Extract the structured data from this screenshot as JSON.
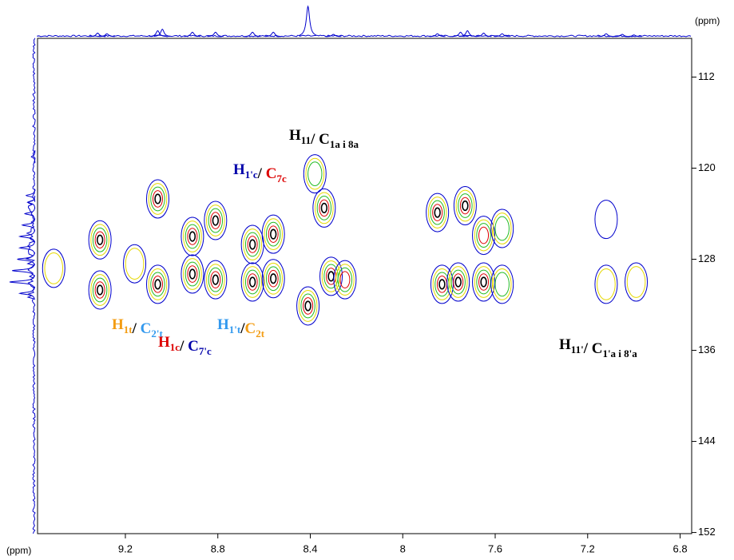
{
  "chart_data": {
    "type": "contour",
    "x_unit": "(ppm)",
    "y_unit": "(ppm)",
    "xlim": [
      9.58,
      6.75
    ],
    "xticks": [
      9.2,
      8.8,
      8.4,
      8.0,
      7.6,
      7.2,
      6.8
    ],
    "ylim": [
      108.6,
      152.1
    ],
    "yticks": [
      112,
      120,
      128,
      136,
      144,
      152
    ],
    "contour_colors": [
      "#0000cc",
      "#e6d800",
      "#22bb22",
      "#dd0000",
      "#000000"
    ],
    "projection_color": "#0000cc",
    "peaks": {
      "x": [
        9.51,
        9.31,
        9.31,
        9.06,
        9.06,
        8.91,
        8.91,
        8.81,
        8.81,
        8.65,
        8.65,
        8.56,
        8.56,
        8.34,
        8.31,
        8.41,
        8.25,
        8.38,
        7.85,
        7.83,
        7.73,
        7.76,
        7.65,
        7.65,
        7.57,
        7.57,
        7.12,
        7.12,
        6.99,
        9.16
      ],
      "y": [
        128.8,
        126.3,
        130.7,
        122.7,
        130.2,
        126,
        129.3,
        124.6,
        129.8,
        126.7,
        130,
        125.8,
        129.7,
        123.5,
        129.5,
        132.1,
        129.8,
        120.5,
        123.9,
        130.2,
        123.3,
        130,
        130,
        125.9,
        130.2,
        125.3,
        130.2,
        124.5,
        130,
        128.4
      ],
      "intensity": [
        2,
        5,
        5,
        5,
        5,
        5,
        5,
        5,
        5,
        5,
        5,
        5,
        5,
        5,
        5,
        5,
        4,
        3,
        5,
        5,
        5,
        5,
        5,
        4,
        3,
        3,
        2,
        1,
        2,
        2
      ]
    },
    "top_projection": {
      "x": [
        9.32,
        9.28,
        9.06,
        9.04,
        8.91,
        8.81,
        8.65,
        8.56,
        8.41,
        8.3,
        7.85,
        7.75,
        7.72,
        7.65,
        7.57,
        7.12,
        7.05,
        7.0
      ],
      "height": [
        0.12,
        0.1,
        0.2,
        0.25,
        0.15,
        0.15,
        0.15,
        0.15,
        1.0,
        0.08,
        0.1,
        0.15,
        0.2,
        0.12,
        0.1,
        0.1,
        0.08,
        0.06
      ]
    },
    "left_projection": {
      "y": [
        119,
        122.4,
        123,
        124,
        125,
        126,
        127,
        128,
        129,
        130,
        131
      ],
      "height": [
        0.15,
        0.35,
        0.3,
        0.4,
        0.5,
        0.6,
        0.6,
        0.7,
        0.9,
        1.0,
        0.6
      ]
    },
    "annotations": [
      [
        {
          "text": "H",
          "sub": "11",
          "color": "#000000"
        },
        {
          "text": "/ C",
          "sub": "1a i 8a",
          "color": "#000000"
        }
      ],
      [
        {
          "text": "H",
          "sub": "1'c",
          "color": "#0000aa"
        },
        {
          "text": "/ ",
          "color": "#000000"
        },
        {
          "text": "C",
          "sub": "7c",
          "color": "#dd0000"
        }
      ],
      [
        {
          "text": "H",
          "sub": "1t",
          "color": "#f39c12"
        },
        {
          "text": "/ ",
          "color": "#000000"
        },
        {
          "text": "C",
          "sub": "2't",
          "color": "#3399ee"
        }
      ],
      [
        {
          "text": "H",
          "sub": "1c",
          "color": "#dd0000"
        },
        {
          "text": "/ ",
          "color": "#000000"
        },
        {
          "text": "C",
          "sub": "7'c",
          "color": "#0000aa"
        }
      ],
      [
        {
          "text": "H",
          "sub": "1't",
          "color": "#3399ee"
        },
        {
          "text": "/",
          "color": "#000000"
        },
        {
          "text": "C",
          "sub": "2t",
          "color": "#f39c12"
        }
      ],
      [
        {
          "text": "H",
          "sub": "11'",
          "color": "#000000"
        },
        {
          "text": "/ C",
          "sub": "1'a i 8'a",
          "color": "#000000"
        }
      ]
    ]
  }
}
